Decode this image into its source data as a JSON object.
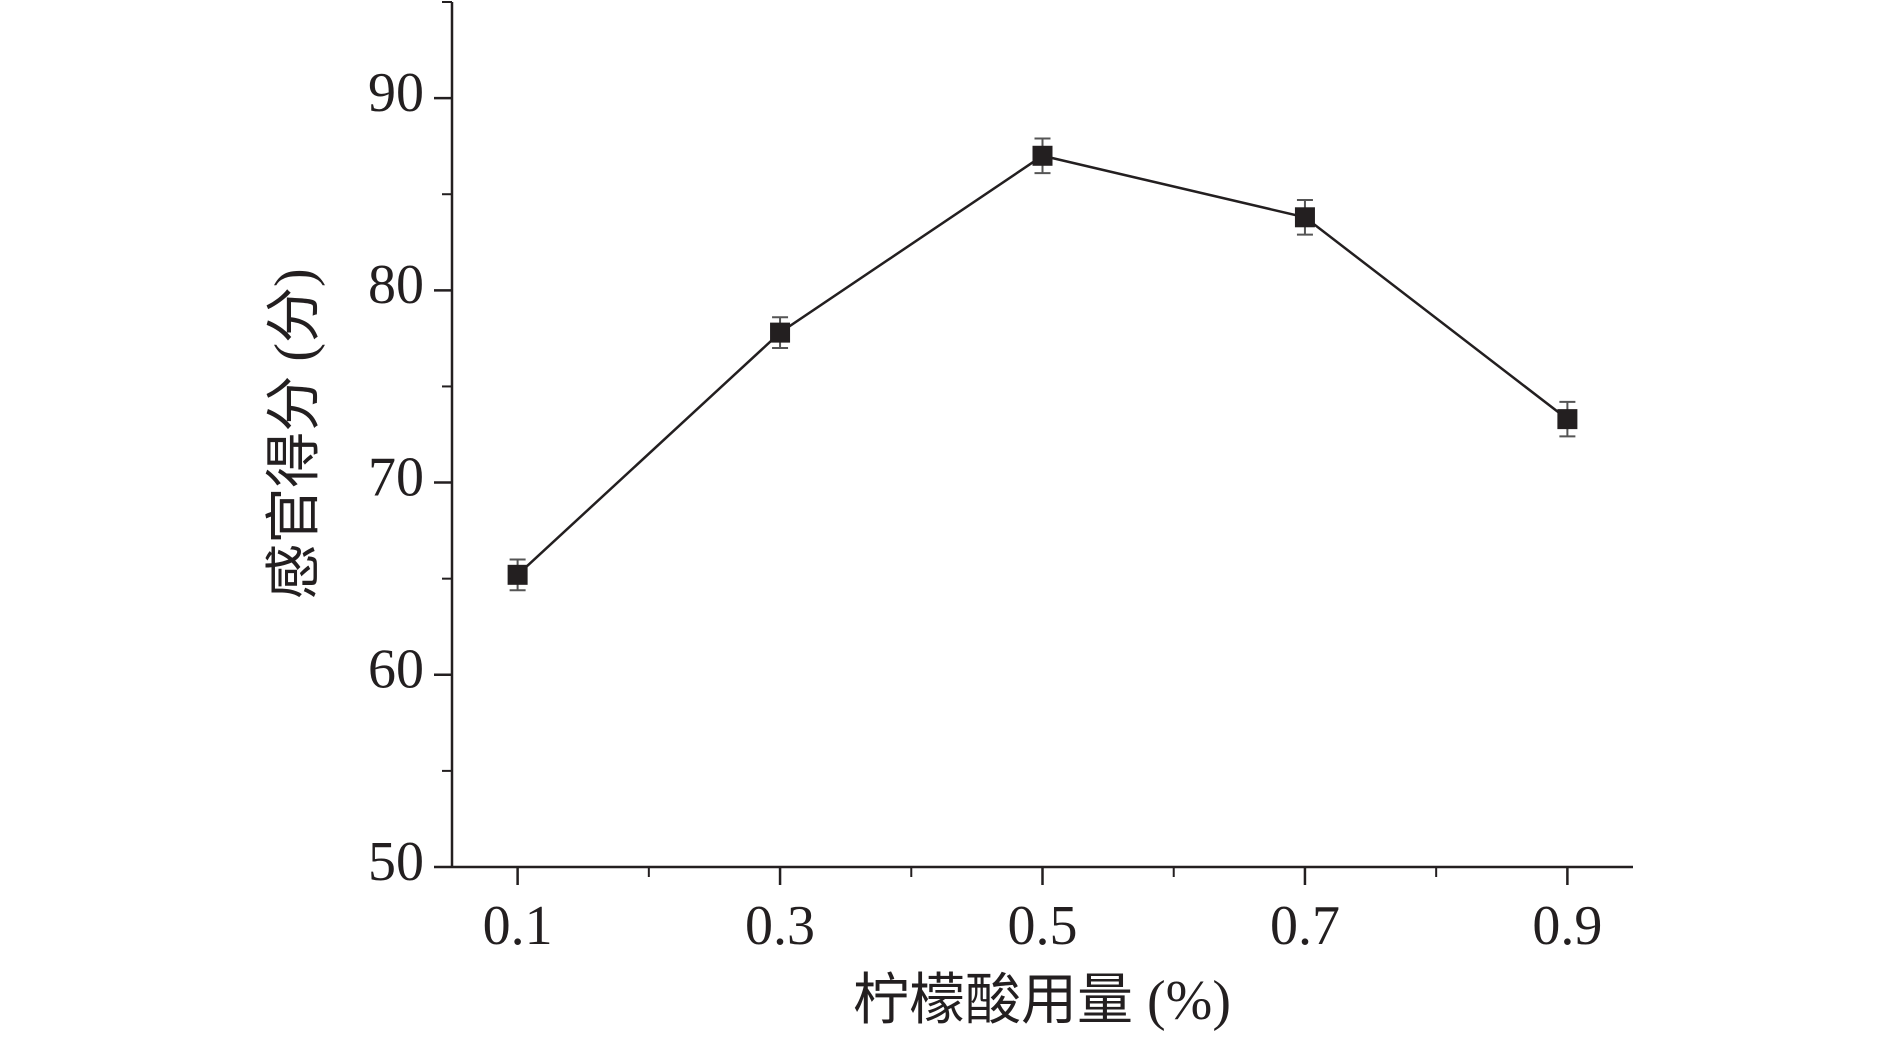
{
  "chart_data": {
    "type": "line",
    "x_label": "柠檬酸用量 (%)",
    "y_label": "感官得分 (分)",
    "x": [
      0.1,
      0.3,
      0.5,
      0.7,
      0.9
    ],
    "series": [
      {
        "name": "感官得分",
        "color": "#231f20",
        "values": [
          65.2,
          77.8,
          87.0,
          83.8,
          73.3
        ],
        "errors": [
          0.8,
          0.8,
          0.9,
          0.9,
          0.9
        ]
      }
    ],
    "xlim": [
      0.05,
      0.95
    ],
    "xticks": [
      0.1,
      0.3,
      0.5,
      0.7,
      0.9
    ],
    "xminorticks": [
      0.2,
      0.4,
      0.6,
      0.8
    ],
    "ylim": [
      50,
      95
    ],
    "yticks": [
      50,
      60,
      70,
      80,
      90
    ],
    "yminorticks": [
      55,
      65,
      75,
      85,
      95
    ],
    "grid": false
  }
}
